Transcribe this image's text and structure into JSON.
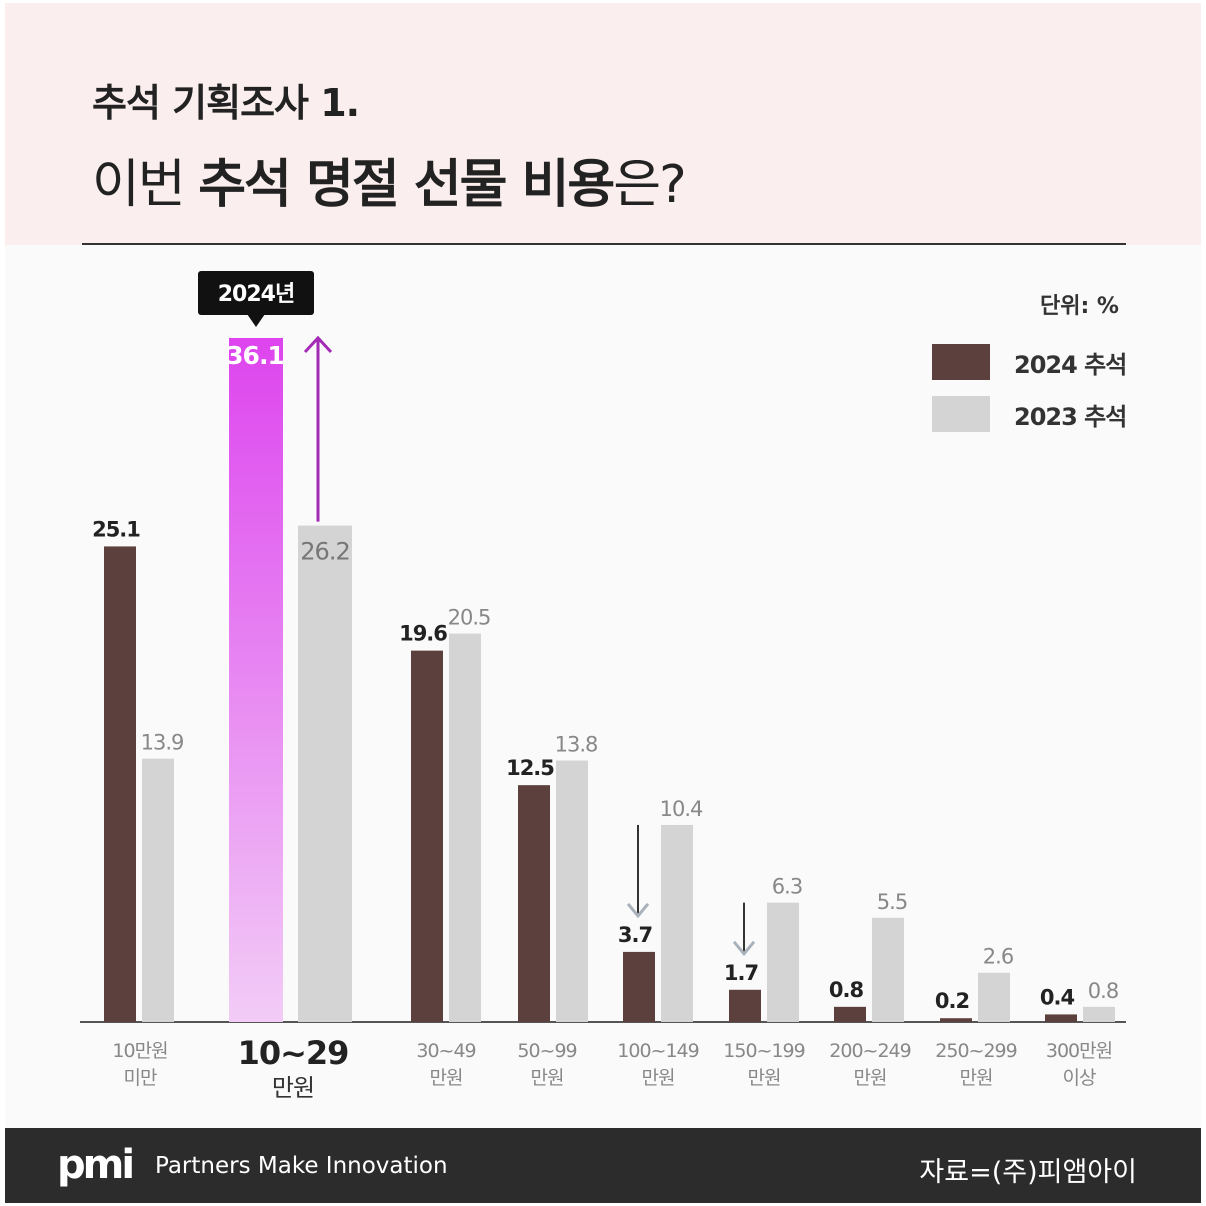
{
  "header": {
    "subtitle": "추석 기획조사 1.",
    "title_prefix": "이번 ",
    "title_bold": "추석 명절 선물 비용",
    "title_suffix": "은?"
  },
  "unit_label": "단위: %",
  "callout": "2024년",
  "legend": [
    {
      "label": "2024 추석",
      "color": "#5c403d"
    },
    {
      "label": "2023 추석",
      "color": "#d4d4d4"
    }
  ],
  "colors": {
    "bar_2024": "#5c403d",
    "bar_2023": "#d4d4d4",
    "highlight_top": "#dd44ee",
    "highlight_bottom": "#f2ccf6",
    "arrow_up": "#a22ab5",
    "arrow_down_grey": "#a9b2bb"
  },
  "chart_data": {
    "type": "bar",
    "categories": [
      [
        "10만원",
        "미만"
      ],
      [
        "10~29",
        "만원"
      ],
      [
        "30~49",
        "만원"
      ],
      [
        "50~99",
        "만원"
      ],
      [
        "100~149",
        "만원"
      ],
      [
        "150~199",
        "만원"
      ],
      [
        "200~249",
        "만원"
      ],
      [
        "250~299",
        "만원"
      ],
      [
        "300만원",
        "이상"
      ]
    ],
    "series": [
      {
        "name": "2024 추석",
        "values": [
          25.1,
          36.1,
          19.6,
          12.5,
          3.7,
          1.7,
          0.8,
          0.2,
          0.4
        ]
      },
      {
        "name": "2023 추석",
        "values": [
          13.9,
          26.2,
          20.5,
          13.8,
          10.4,
          6.3,
          5.5,
          2.6,
          0.8
        ]
      }
    ],
    "value_labels": {
      "2024": [
        "25.1",
        "36.1",
        "19.6",
        "12.5",
        "3.7",
        "1.7",
        "0.8",
        "0.2",
        "0.4"
      ],
      "2023": [
        "13.9",
        "26.2",
        "20.5",
        "13.8",
        "10.4",
        "6.3",
        "5.5",
        "2.6",
        "0.8"
      ]
    },
    "highlight_category": 1,
    "down_arrows": [
      4,
      5
    ],
    "ylim": [
      0,
      36.1
    ],
    "grid": false,
    "legend_position": "top-right"
  },
  "footer": {
    "logo": "pmi",
    "tagline": "Partners Make Innovation",
    "source": "자료=(주)피앰아이"
  }
}
